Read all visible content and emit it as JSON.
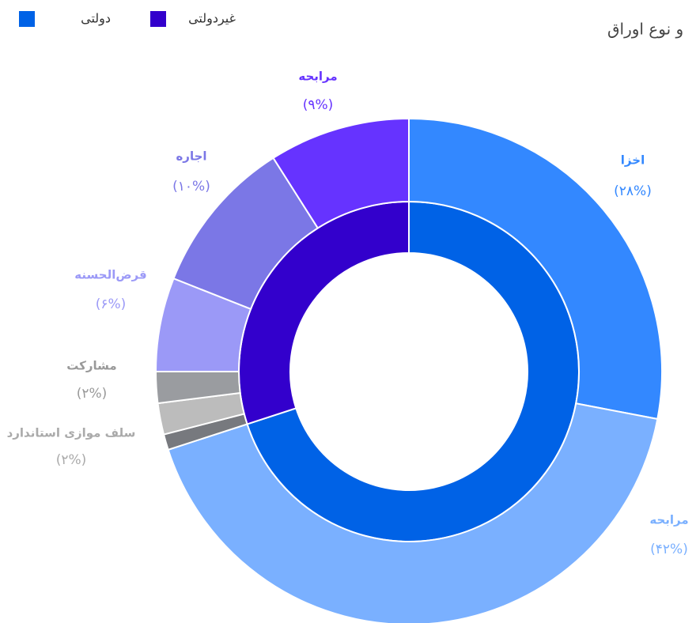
{
  "chart_data": {
    "type": "nested-donut",
    "title": "و نوع اوراق",
    "rings": [
      {
        "categories": [
          "دولتی",
          "غیردولتی"
        ],
        "values": [
          70,
          30
        ],
        "colors": [
          "#0062e6",
          "#3300cc"
        ]
      },
      {
        "categories": [
          "اخزا",
          "مرابحه",
          null,
          "سلف موازی استاندارد",
          "مشارکت",
          "قرض‌الحسنه",
          "اجاره",
          "مرابحه"
        ],
        "values": [
          28,
          42,
          1,
          2,
          2,
          6,
          10,
          9
        ],
        "value_labels": [
          "(۲۸%)",
          "(۴۲%)",
          null,
          "(۲%)",
          "(۲%)",
          "(۶%)",
          "(۱۰%)",
          "(۹%)"
        ],
        "colors": [
          "#3388ff",
          "#7ab0ff",
          "#77797e",
          "#bcbcbc",
          "#9a9ca0",
          "#9b99f7",
          "#7b77e6",
          "#6633ff"
        ],
        "label_colors": [
          "#3388ff",
          "#7ab0ff",
          "#999999",
          "#aaaaaa",
          "#999999",
          "#9b99f7",
          "#7b77e6",
          "#6633ff"
        ]
      }
    ],
    "legend": "top-left"
  }
}
